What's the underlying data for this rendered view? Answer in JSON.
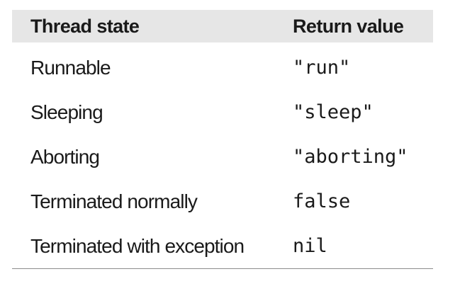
{
  "table": {
    "headers": [
      "Thread state",
      "Return value"
    ],
    "rows": [
      {
        "state": "Runnable",
        "value": "\"run\""
      },
      {
        "state": "Sleeping",
        "value": "\"sleep\""
      },
      {
        "state": "Aborting",
        "value": "\"aborting\""
      },
      {
        "state": "Terminated normally",
        "value": "false"
      },
      {
        "state": "Terminated with exception",
        "value": "nil"
      }
    ]
  }
}
